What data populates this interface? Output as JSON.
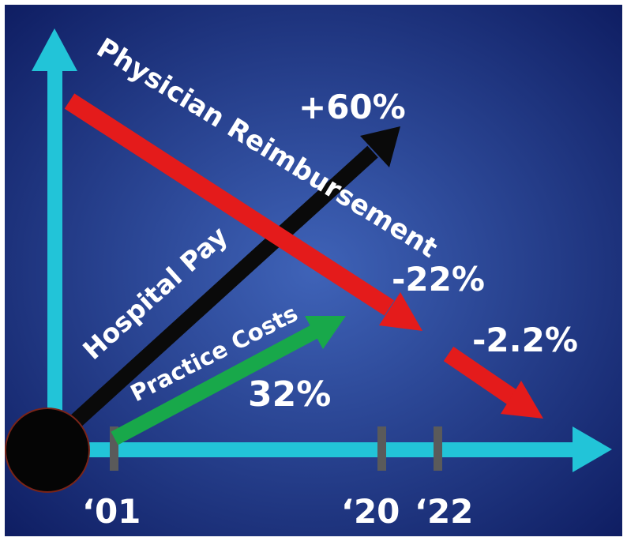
{
  "diagram": {
    "labels": {
      "physician_reimbursement": "Physician Reimbursement",
      "hospital_pay": "Hospital Pay",
      "practice_costs": "Practice Costs",
      "hospital_pay_change": "+60%",
      "physician_change_2001_2020": "-22%",
      "physician_change_2020_2022": "-2.2%",
      "practice_costs_change": "32%"
    },
    "x_ticks": [
      "‘01",
      "‘20",
      "‘22"
    ]
  },
  "colors": {
    "background_center": "#3f63b8",
    "background_edge": "#0f1e63",
    "axis": "#22c4d8",
    "physician_reimbursement": "#e41b1b",
    "hospital_pay": "#0a0a0a",
    "practice_costs": "#18a84a",
    "tick": "#5a5a5a",
    "origin": "#050505",
    "text": "#ffffff"
  }
}
